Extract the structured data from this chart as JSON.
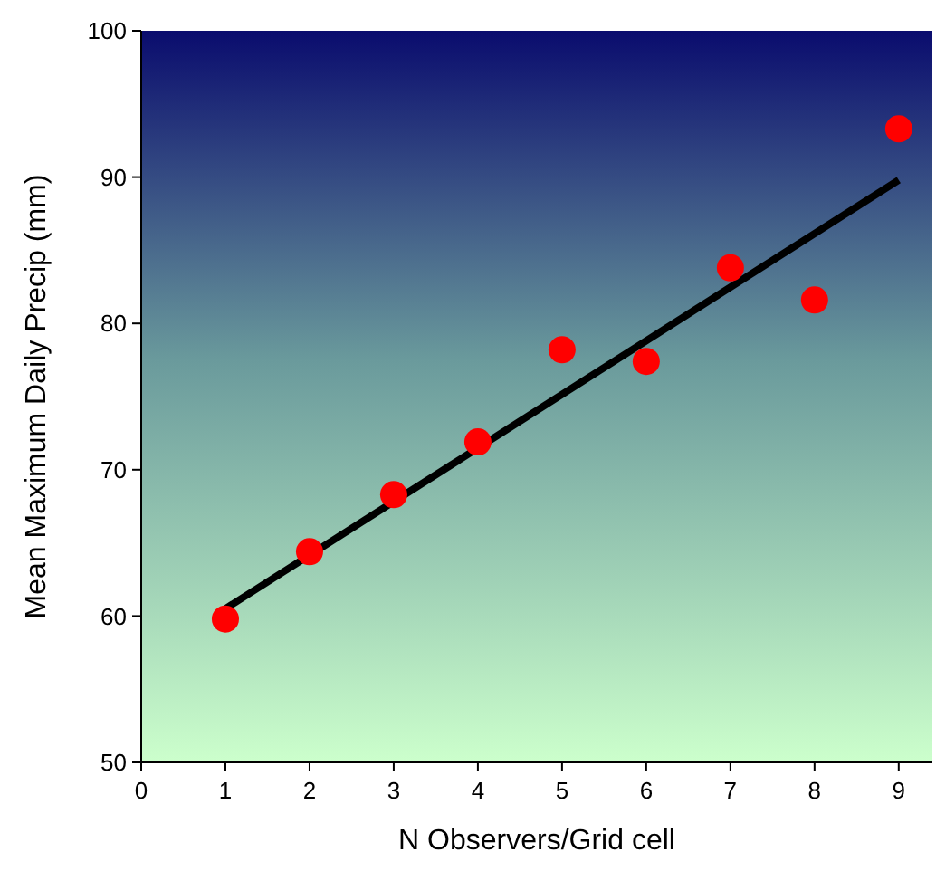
{
  "chart_data": {
    "type": "scatter",
    "xlabel": "N Observers/Grid cell",
    "ylabel": "Mean Maximum Daily Precip (mm)",
    "xlim": [
      0,
      9.4
    ],
    "xticks": [
      0,
      1,
      2,
      3,
      4,
      5,
      6,
      7,
      8,
      9
    ],
    "ylim": [
      50,
      100
    ],
    "yticks": [
      50,
      60,
      70,
      80,
      90,
      100
    ],
    "grid": false,
    "marker": "circle",
    "series": [
      {
        "color": "#ff0000",
        "x": [
          1,
          2,
          3,
          4,
          5,
          6,
          7,
          8,
          9
        ],
        "values": [
          59.8,
          64.4,
          68.3,
          71.9,
          78.2,
          77.4,
          83.8,
          81.6,
          93.3
        ]
      },
      {
        "type": "line",
        "color": "#000000",
        "x": [
          1,
          9
        ],
        "values": [
          60.5,
          89.8
        ],
        "marker": "none",
        "line_style": "solid"
      }
    ]
  }
}
